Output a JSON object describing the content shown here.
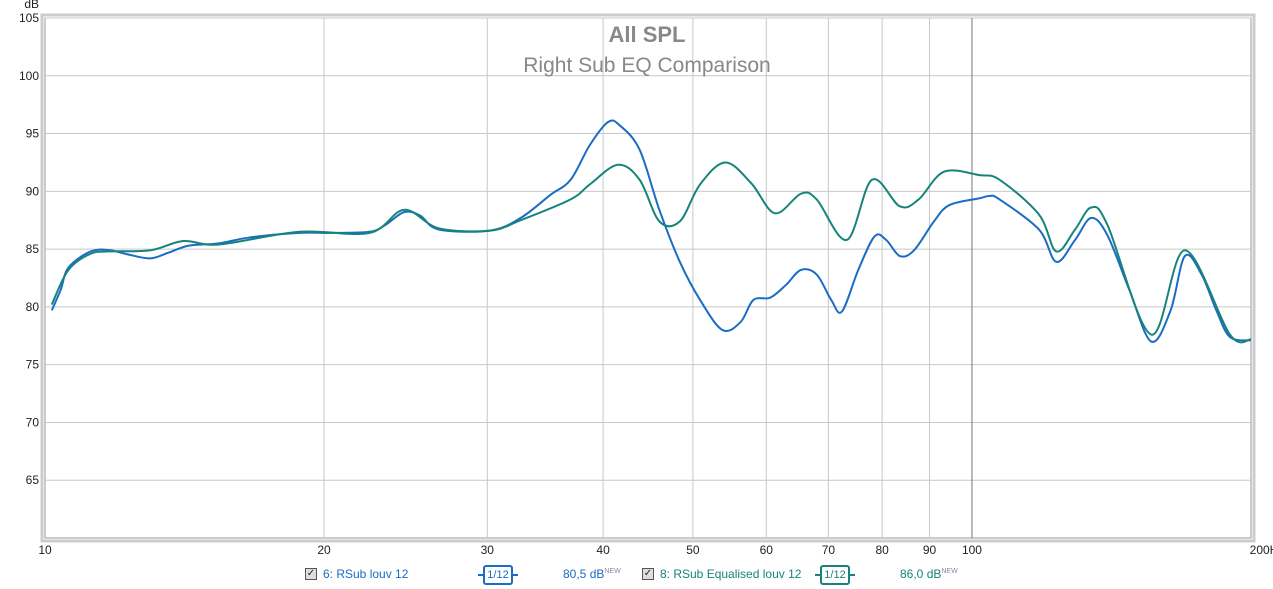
{
  "chart_data": {
    "type": "line",
    "title": "All SPL",
    "subtitle": "Right Sub EQ Comparison",
    "ylabel": "dB",
    "xscale": "log",
    "xlim": [
      10,
      200
    ],
    "ylim": [
      60,
      105
    ],
    "grid": true,
    "yticks": [
      65,
      70,
      75,
      80,
      85,
      90,
      95,
      100,
      105
    ],
    "xticks": [
      {
        "v": 10,
        "label": "10"
      },
      {
        "v": 20,
        "label": "20"
      },
      {
        "v": 30,
        "label": "30"
      },
      {
        "v": 40,
        "label": "40"
      },
      {
        "v": 50,
        "label": "50"
      },
      {
        "v": 60,
        "label": "60"
      },
      {
        "v": 70,
        "label": "70"
      },
      {
        "v": 80,
        "label": "80"
      },
      {
        "v": 90,
        "label": "90"
      },
      {
        "v": 100,
        "label": "100"
      },
      {
        "v": 200,
        "label": "200Hz"
      }
    ],
    "series": [
      {
        "name": "6: RSub louv 12",
        "color": "#1a6cc4",
        "points": [
          [
            10.17,
            79.7
          ],
          [
            10.4,
            81.5
          ],
          [
            10.6,
            83.4
          ],
          [
            11.2,
            84.8
          ],
          [
            11.75,
            84.9
          ],
          [
            12.35,
            84.5
          ],
          [
            13.0,
            84.2
          ],
          [
            13.6,
            84.7
          ],
          [
            14.3,
            85.3
          ],
          [
            15.4,
            85.5
          ],
          [
            16.6,
            86.0
          ],
          [
            18.8,
            86.4
          ],
          [
            20.3,
            86.4
          ],
          [
            22.4,
            86.5
          ],
          [
            23.3,
            87.1
          ],
          [
            24.4,
            88.2
          ],
          [
            25.4,
            87.9
          ],
          [
            26.6,
            86.7
          ],
          [
            30.2,
            86.6
          ],
          [
            32.6,
            87.7
          ],
          [
            35.1,
            89.7
          ],
          [
            36.9,
            91.0
          ],
          [
            38.7,
            94.0
          ],
          [
            40.5,
            96.0
          ],
          [
            41.7,
            95.7
          ],
          [
            43.8,
            93.6
          ],
          [
            46.0,
            88.4
          ],
          [
            48.4,
            83.9
          ],
          [
            50.9,
            80.6
          ],
          [
            53.8,
            78.0
          ],
          [
            56.3,
            78.7
          ],
          [
            58.1,
            80.6
          ],
          [
            60.6,
            80.8
          ],
          [
            63.0,
            81.9
          ],
          [
            65.4,
            83.2
          ],
          [
            68.0,
            82.8
          ],
          [
            70.5,
            80.6
          ],
          [
            72.4,
            79.6
          ],
          [
            75.4,
            83.2
          ],
          [
            78.5,
            86.1
          ],
          [
            80.8,
            85.8
          ],
          [
            83.6,
            84.4
          ],
          [
            86.6,
            84.9
          ],
          [
            91.0,
            87.4
          ],
          [
            94.5,
            88.8
          ],
          [
            101.9,
            89.4
          ],
          [
            104.5,
            89.6
          ],
          [
            107.1,
            89.3
          ],
          [
            118.1,
            86.7
          ],
          [
            123.3,
            83.9
          ],
          [
            129.2,
            85.8
          ],
          [
            134.5,
            87.7
          ],
          [
            140.0,
            86.2
          ],
          [
            147.8,
            81.5
          ],
          [
            156.1,
            77.0
          ],
          [
            163.8,
            79.7
          ],
          [
            169.7,
            84.4
          ],
          [
            176.9,
            82.8
          ],
          [
            183.5,
            79.7
          ],
          [
            189.8,
            77.4
          ],
          [
            200,
            77.1
          ]
        ]
      },
      {
        "name": "8: RSub Equalised louv 12",
        "color": "#16847a",
        "points": [
          [
            10.17,
            80.2
          ],
          [
            10.6,
            83.2
          ],
          [
            11.2,
            84.6
          ],
          [
            11.75,
            84.8
          ],
          [
            13.0,
            84.9
          ],
          [
            14.1,
            85.7
          ],
          [
            15.4,
            85.4
          ],
          [
            18.8,
            86.5
          ],
          [
            22.4,
            86.4
          ],
          [
            24.4,
            88.4
          ],
          [
            26.6,
            86.8
          ],
          [
            30.2,
            86.6
          ],
          [
            32.6,
            87.5
          ],
          [
            36.9,
            89.3
          ],
          [
            38.7,
            90.6
          ],
          [
            41.5,
            92.3
          ],
          [
            43.8,
            91.0
          ],
          [
            46.0,
            87.4
          ],
          [
            48.4,
            87.4
          ],
          [
            50.9,
            90.6
          ],
          [
            54.2,
            92.5
          ],
          [
            57.8,
            90.7
          ],
          [
            61.3,
            88.1
          ],
          [
            65.4,
            89.8
          ],
          [
            68.0,
            89.3
          ],
          [
            73.3,
            85.8
          ],
          [
            78.0,
            91.0
          ],
          [
            83.6,
            88.7
          ],
          [
            87.6,
            89.3
          ],
          [
            93.3,
            91.7
          ],
          [
            101.9,
            91.4
          ],
          [
            107.1,
            91.0
          ],
          [
            118.1,
            88.0
          ],
          [
            123.3,
            84.8
          ],
          [
            129.2,
            86.7
          ],
          [
            134.5,
            88.6
          ],
          [
            140.0,
            87.1
          ],
          [
            156.1,
            77.6
          ],
          [
            169.7,
            84.9
          ],
          [
            189.8,
            77.6
          ],
          [
            200,
            77.2
          ]
        ]
      }
    ]
  },
  "legend": [
    {
      "label": "6: RSub louv 12",
      "checked": true,
      "check": "✓",
      "smoothing": "1/12",
      "level": "80,5 dB",
      "badge": "NEW",
      "color": "#1a6cc4"
    },
    {
      "label": "8: RSub Equalised louv 12",
      "checked": true,
      "check": "✓",
      "smoothing": "1/12",
      "level": "86,0 dB",
      "badge": "NEW",
      "color": "#16847a"
    }
  ]
}
